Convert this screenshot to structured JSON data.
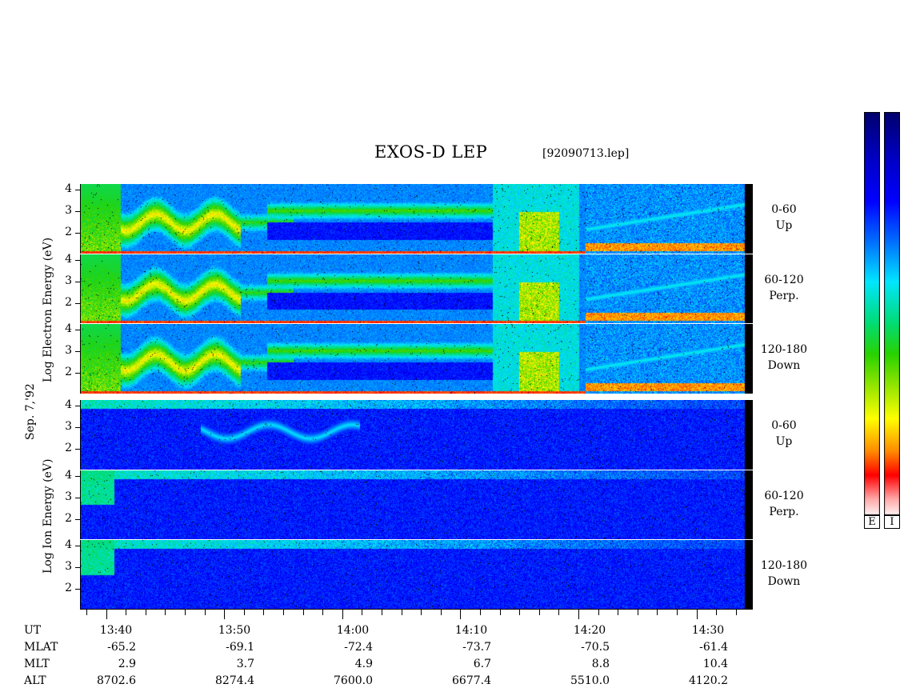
{
  "title": "EXOS-D LEP",
  "file": "[92090713.lep]",
  "date_label": "Sep. 7,'92",
  "electron_label": "Log  Electron  Energy (eV)",
  "ion_label": "Log  Ion  Energy (eV)",
  "panels": [
    {
      "label_a": "0-60",
      "label_b": "Up"
    },
    {
      "label_a": "60-120",
      "label_b": "Perp."
    },
    {
      "label_a": "120-180",
      "label_b": "Down"
    },
    {
      "label_a": "0-60",
      "label_b": "Up"
    },
    {
      "label_a": "60-120",
      "label_b": "Perp."
    },
    {
      "label_a": "120-180",
      "label_b": "Down"
    }
  ],
  "y_ticks": [
    "4",
    "3",
    "2"
  ],
  "colorbar": {
    "left_label": "E",
    "right_label": "I"
  },
  "table": {
    "row_labels": [
      "UT",
      "MLAT",
      "MLT",
      "ALT"
    ],
    "columns": [
      {
        "UT": "13:40",
        "MLAT": "-65.2",
        "MLT": "2.9",
        "ALT": "8702.6"
      },
      {
        "UT": "13:50",
        "MLAT": "-69.1",
        "MLT": "3.7",
        "ALT": "8274.4"
      },
      {
        "UT": "14:00",
        "MLAT": "-72.4",
        "MLT": "4.9",
        "ALT": "7600.0"
      },
      {
        "UT": "14:10",
        "MLAT": "-73.7",
        "MLT": "6.7",
        "ALT": "6677.4"
      },
      {
        "UT": "14:20",
        "MLAT": "-70.5",
        "MLT": "8.8",
        "ALT": "5510.0"
      },
      {
        "UT": "14:30",
        "MLAT": "-61.4",
        "MLT": "10.4",
        "ALT": "4120.2"
      }
    ]
  },
  "chart_data": {
    "type": "heatmap",
    "title": "EXOS-D LEP",
    "xlabel": "UT",
    "ylabel": "Log Energy (eV)",
    "y_range": [
      1,
      4.2
    ],
    "x_ticks": [
      "13:40",
      "13:50",
      "14:00",
      "14:10",
      "14:20",
      "14:30"
    ],
    "rows": [
      "Electron 0-60 Up",
      "Electron 60-120 Perp.",
      "Electron 120-180 Down",
      "Ion 0-60 Up",
      "Ion 60-120 Perp.",
      "Ion 120-180 Down"
    ],
    "colormap": [
      "#ffffff",
      "#ff6a6a",
      "#ff0000",
      "#ff9900",
      "#ffff00",
      "#88ff00",
      "#00cc00",
      "#00ffff",
      "#0088ff",
      "#0000ff",
      "#000080"
    ]
  }
}
